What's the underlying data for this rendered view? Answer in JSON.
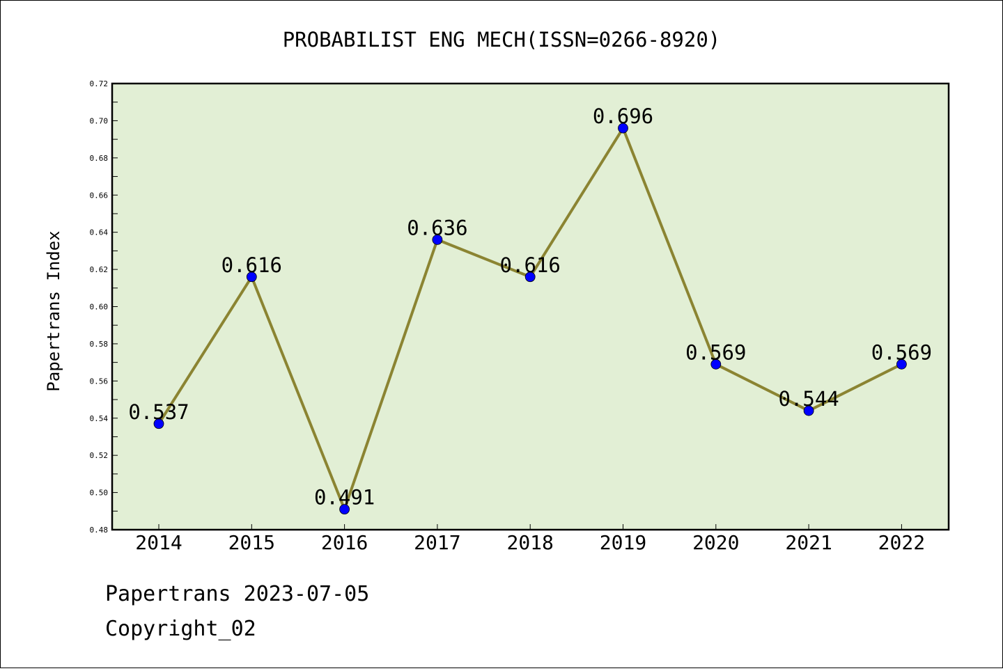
{
  "chart_data": {
    "type": "line",
    "title": "PROBABILIST ENG MECH(ISSN=0266-8920)",
    "xlabel": "",
    "ylabel": "Papertrans Index",
    "categories": [
      "2014",
      "2015",
      "2016",
      "2017",
      "2018",
      "2019",
      "2020",
      "2021",
      "2022"
    ],
    "series": [
      {
        "values": [
          0.537,
          0.616,
          0.491,
          0.636,
          0.616,
          0.696,
          0.569,
          0.544,
          0.569
        ],
        "labels": [
          "0.537",
          "0.616",
          "0.491",
          "0.636",
          "0.616",
          "0.696",
          "0.569",
          "0.544",
          "0.569"
        ],
        "line_color": "#8b8432",
        "marker_color": "#0000ff"
      }
    ],
    "ylim": [
      0.48,
      0.72
    ],
    "yticks": [
      "0.48",
      "0.50",
      "0.52",
      "0.54",
      "0.56",
      "0.58",
      "0.60",
      "0.62",
      "0.64",
      "0.66",
      "0.68",
      "0.70",
      "0.72"
    ],
    "grid": false,
    "legend": "none",
    "plot_background": "#e2efd5"
  },
  "footer": {
    "source": "Papertrans 2023-07-05",
    "copyright": "Copyright_02"
  }
}
